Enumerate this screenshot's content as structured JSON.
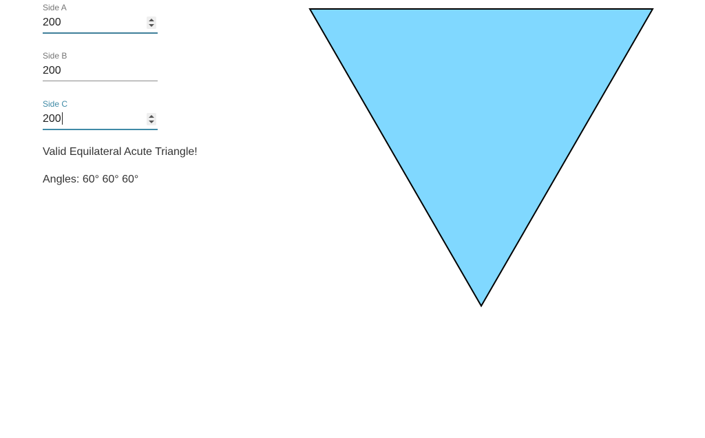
{
  "form": {
    "side_a": {
      "label": "Side A",
      "value": "200"
    },
    "side_b": {
      "label": "Side B",
      "value": "200"
    },
    "side_c": {
      "label": "Side C",
      "value": "200"
    }
  },
  "result": {
    "message": "Valid Equilateral Acute Triangle!",
    "angles_text": "Angles: 60° 60° 60°"
  },
  "triangle": {
    "side_a": 200,
    "side_b": 200,
    "side_c": 200,
    "fill_color": "#80d8ff",
    "stroke_color": "#000000"
  }
}
